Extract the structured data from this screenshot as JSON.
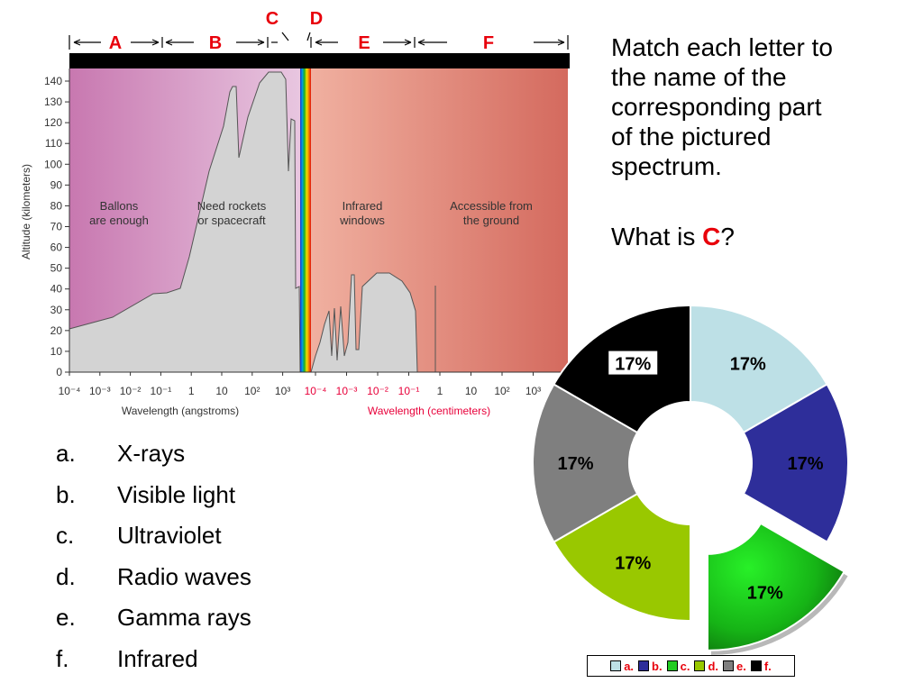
{
  "question": {
    "lines": [
      "Match each letter to",
      "the name of the",
      "corresponding part",
      "of the pictured",
      "spectrum."
    ],
    "ask_prefix": "What is ",
    "ask_letter": "C",
    "ask_suffix": "?"
  },
  "answers": [
    {
      "marker": "a.",
      "label": "X-rays"
    },
    {
      "marker": "b.",
      "label": "Visible light"
    },
    {
      "marker": "c.",
      "label": "Ultraviolet"
    },
    {
      "marker": "d.",
      "label": "Radio waves"
    },
    {
      "marker": "e.",
      "label": "Gamma rays"
    },
    {
      "marker": "f.",
      "label": "Infrared"
    }
  ],
  "spectrum": {
    "band_letters": [
      "A",
      "B",
      "C",
      "D",
      "E",
      "F"
    ],
    "ylabel": "Altitude (kilometers)",
    "y_ticks": [
      0,
      10,
      20,
      30,
      40,
      50,
      60,
      70,
      80,
      90,
      100,
      110,
      120,
      130,
      140
    ],
    "x_ticks_left": [
      "10⁻⁴",
      "10⁻³",
      "10⁻²",
      "10⁻¹",
      "1",
      "10",
      "10²",
      "10³"
    ],
    "x_ticks_right": [
      "10⁻⁴",
      "10⁻³",
      "10⁻²",
      "10⁻¹",
      "1",
      "10",
      "10²",
      "10³"
    ],
    "xlabel_left": "Wavelength (angstroms)",
    "xlabel_right": "Wavelength (centimeters)",
    "region_labels": [
      {
        "line1": "Ballons",
        "line2": "are enough"
      },
      {
        "line1": "Need rockets",
        "line2": "or spacecraft"
      },
      {
        "line1": "Infrared",
        "line2": "windows"
      },
      {
        "line1": "Accessible from",
        "line2": "the ground"
      }
    ],
    "colors": {
      "letters": "#e8000b",
      "right_xlabel": "#e8003a",
      "atmosphere": "#d3d3d3"
    }
  },
  "chart_data": {
    "type": "pie",
    "categories": [
      "a.",
      "b.",
      "c.",
      "d.",
      "e.",
      "f."
    ],
    "values": [
      17,
      17,
      17,
      17,
      17,
      17
    ],
    "labels": [
      "17%",
      "17%",
      "17%",
      "17%",
      "17%",
      "17%"
    ],
    "colors": [
      "#bde0e6",
      "#2e2e9a",
      "#22cc22",
      "#99c800",
      "#7f7f7f",
      "#000000"
    ],
    "exploded": "c.",
    "legend_position": "bottom"
  }
}
